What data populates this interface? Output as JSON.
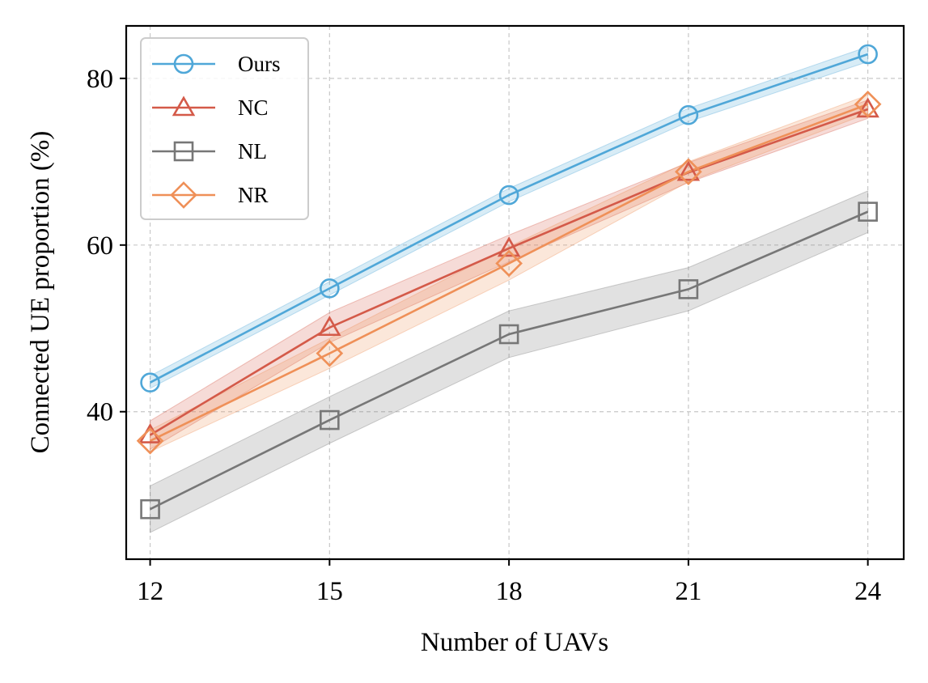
{
  "chart_data": {
    "type": "line",
    "title": "",
    "xlabel": "Number of UAVs",
    "ylabel": "Connected UE proportion (%)",
    "x": [
      12,
      15,
      18,
      21,
      24
    ],
    "xticks": [
      "12",
      "15",
      "18",
      "21",
      "24"
    ],
    "yticks": [
      40,
      60,
      80
    ],
    "ytick_labels": [
      "40",
      "60",
      "80"
    ],
    "xlim": [
      11.6,
      24.6
    ],
    "ylim": [
      22.3,
      86.3
    ],
    "grid": true,
    "legend_position": "top-left",
    "series": [
      {
        "name": "Ours",
        "marker": "circle",
        "color": "#4fa7d8",
        "values": [
          43.5,
          54.8,
          66.0,
          75.6,
          82.9
        ],
        "band_lower": [
          42.8,
          54.0,
          65.2,
          74.8,
          82.0
        ],
        "band_upper": [
          44.3,
          55.6,
          66.8,
          76.4,
          83.8
        ]
      },
      {
        "name": "NC",
        "marker": "triangle",
        "color": "#d45a49",
        "values": [
          37.2,
          50.1,
          59.6,
          68.7,
          76.3
        ],
        "band_lower": [
          35.5,
          48.3,
          58.0,
          67.5,
          75.2
        ],
        "band_upper": [
          38.9,
          51.9,
          61.2,
          69.9,
          77.4
        ]
      },
      {
        "name": "NL",
        "marker": "square",
        "color": "#777777",
        "values": [
          28.3,
          39.0,
          49.3,
          54.7,
          64.0
        ],
        "band_lower": [
          25.5,
          36.2,
          46.5,
          52.1,
          61.5
        ],
        "band_upper": [
          31.1,
          41.8,
          52.1,
          57.3,
          66.5
        ]
      },
      {
        "name": "NR",
        "marker": "diamond",
        "color": "#ef9058",
        "values": [
          36.5,
          47.0,
          57.8,
          68.8,
          76.9
        ],
        "band_lower": [
          35.2,
          45.2,
          55.8,
          67.6,
          75.8
        ],
        "band_upper": [
          37.8,
          48.8,
          59.8,
          70.0,
          78.0
        ]
      }
    ]
  }
}
